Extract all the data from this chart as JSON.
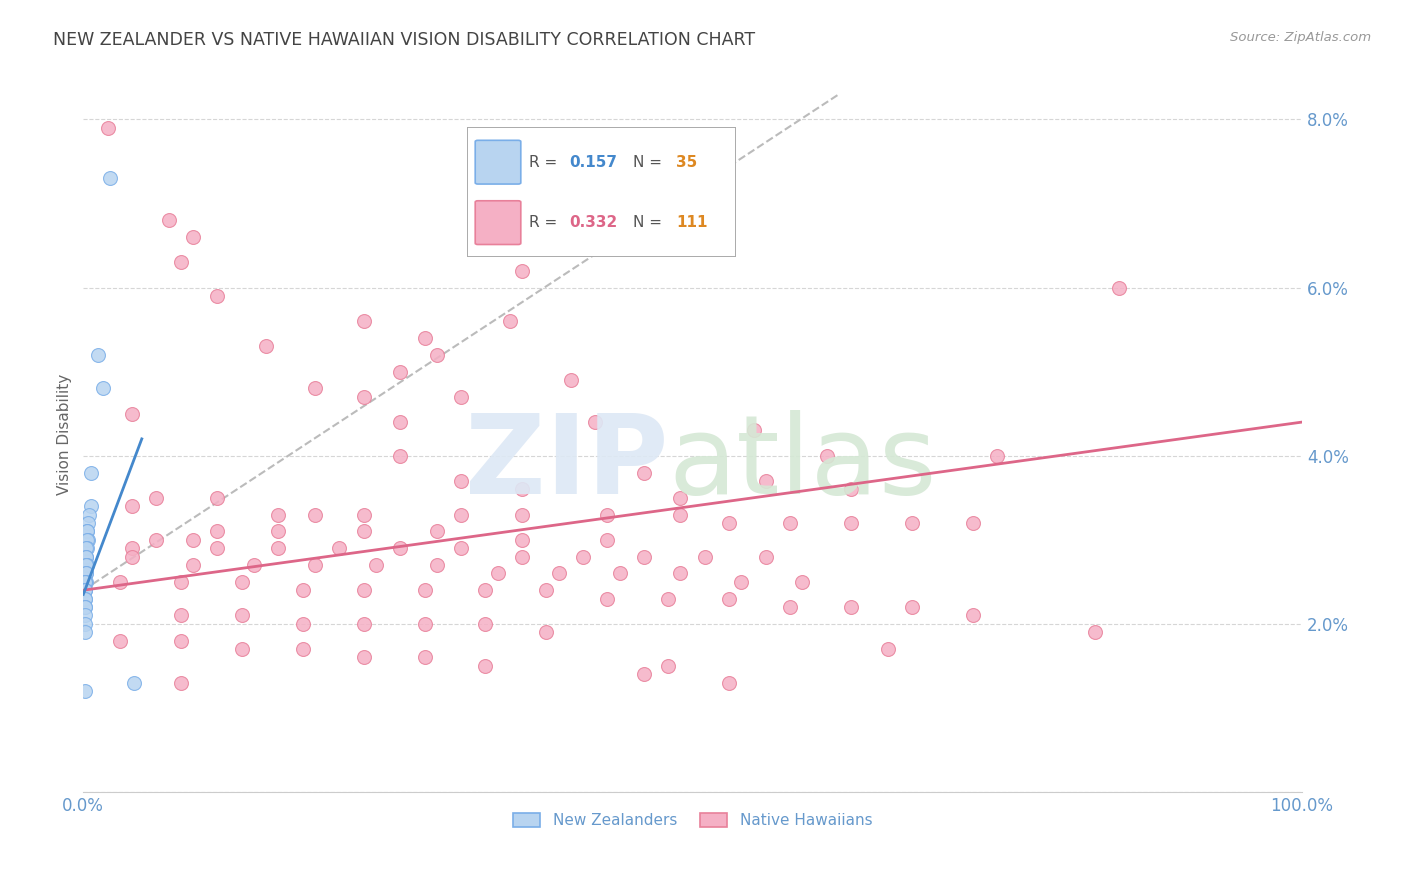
{
  "title": "NEW ZEALANDER VS NATIVE HAWAIIAN VISION DISABILITY CORRELATION CHART",
  "source": "Source: ZipAtlas.com",
  "ylabel": "Vision Disability",
  "xlim": [
    0,
    1.0
  ],
  "ylim": [
    0,
    0.085
  ],
  "yticks": [
    0.0,
    0.02,
    0.04,
    0.06,
    0.08
  ],
  "ytick_labels": [
    "",
    "2.0%",
    "4.0%",
    "6.0%",
    "8.0%"
  ],
  "xticks": [
    0.0,
    0.2,
    0.4,
    0.6,
    0.8,
    1.0
  ],
  "xtick_labels": [
    "0.0%",
    "",
    "",
    "",
    "",
    "100.0%"
  ],
  "nz_color_fill": "#b8d4f0",
  "nz_color_edge": "#7aaee8",
  "nh_color_fill": "#f5b0c5",
  "nh_color_edge": "#e8809a",
  "nz_line_color": "#4488cc",
  "nh_line_color": "#dd6688",
  "dashed_color": "#bbbbbb",
  "background_color": "#ffffff",
  "grid_color": "#cccccc",
  "tick_label_color": "#6699cc",
  "title_color": "#444444",
  "nz_R": "0.157",
  "nz_N": "35",
  "nh_R": "0.332",
  "nh_N": "111",
  "nz_scatter": [
    [
      0.022,
      0.073
    ],
    [
      0.012,
      0.052
    ],
    [
      0.016,
      0.048
    ],
    [
      0.006,
      0.038
    ],
    [
      0.006,
      0.034
    ],
    [
      0.005,
      0.033
    ],
    [
      0.004,
      0.032
    ],
    [
      0.003,
      0.031
    ],
    [
      0.003,
      0.031
    ],
    [
      0.004,
      0.03
    ],
    [
      0.003,
      0.03
    ],
    [
      0.003,
      0.029
    ],
    [
      0.002,
      0.029
    ],
    [
      0.002,
      0.028
    ],
    [
      0.002,
      0.028
    ],
    [
      0.002,
      0.027
    ],
    [
      0.003,
      0.027
    ],
    [
      0.002,
      0.027
    ],
    [
      0.002,
      0.026
    ],
    [
      0.002,
      0.026
    ],
    [
      0.002,
      0.025
    ],
    [
      0.001,
      0.025
    ],
    [
      0.001,
      0.025
    ],
    [
      0.001,
      0.024
    ],
    [
      0.001,
      0.024
    ],
    [
      0.001,
      0.024
    ],
    [
      0.001,
      0.023
    ],
    [
      0.001,
      0.023
    ],
    [
      0.001,
      0.022
    ],
    [
      0.001,
      0.022
    ],
    [
      0.001,
      0.021
    ],
    [
      0.001,
      0.02
    ],
    [
      0.001,
      0.019
    ],
    [
      0.001,
      0.012
    ],
    [
      0.042,
      0.013
    ]
  ],
  "nh_scatter": [
    [
      0.02,
      0.079
    ],
    [
      0.07,
      0.068
    ],
    [
      0.09,
      0.066
    ],
    [
      0.08,
      0.063
    ],
    [
      0.36,
      0.062
    ],
    [
      0.85,
      0.06
    ],
    [
      0.11,
      0.059
    ],
    [
      0.35,
      0.056
    ],
    [
      0.23,
      0.056
    ],
    [
      0.28,
      0.054
    ],
    [
      0.15,
      0.053
    ],
    [
      0.29,
      0.052
    ],
    [
      0.26,
      0.05
    ],
    [
      0.4,
      0.049
    ],
    [
      0.19,
      0.048
    ],
    [
      0.23,
      0.047
    ],
    [
      0.31,
      0.047
    ],
    [
      0.04,
      0.045
    ],
    [
      0.26,
      0.044
    ],
    [
      0.42,
      0.044
    ],
    [
      0.55,
      0.043
    ],
    [
      0.61,
      0.04
    ],
    [
      0.26,
      0.04
    ],
    [
      0.75,
      0.04
    ],
    [
      0.46,
      0.038
    ],
    [
      0.31,
      0.037
    ],
    [
      0.56,
      0.037
    ],
    [
      0.63,
      0.036
    ],
    [
      0.36,
      0.036
    ],
    [
      0.49,
      0.035
    ],
    [
      0.11,
      0.035
    ],
    [
      0.06,
      0.035
    ],
    [
      0.04,
      0.034
    ],
    [
      0.16,
      0.033
    ],
    [
      0.19,
      0.033
    ],
    [
      0.23,
      0.033
    ],
    [
      0.31,
      0.033
    ],
    [
      0.36,
      0.033
    ],
    [
      0.43,
      0.033
    ],
    [
      0.49,
      0.033
    ],
    [
      0.53,
      0.032
    ],
    [
      0.58,
      0.032
    ],
    [
      0.63,
      0.032
    ],
    [
      0.68,
      0.032
    ],
    [
      0.73,
      0.032
    ],
    [
      0.11,
      0.031
    ],
    [
      0.16,
      0.031
    ],
    [
      0.23,
      0.031
    ],
    [
      0.29,
      0.031
    ],
    [
      0.36,
      0.03
    ],
    [
      0.43,
      0.03
    ],
    [
      0.09,
      0.03
    ],
    [
      0.06,
      0.03
    ],
    [
      0.04,
      0.029
    ],
    [
      0.11,
      0.029
    ],
    [
      0.16,
      0.029
    ],
    [
      0.21,
      0.029
    ],
    [
      0.26,
      0.029
    ],
    [
      0.31,
      0.029
    ],
    [
      0.36,
      0.028
    ],
    [
      0.41,
      0.028
    ],
    [
      0.46,
      0.028
    ],
    [
      0.51,
      0.028
    ],
    [
      0.56,
      0.028
    ],
    [
      0.04,
      0.028
    ],
    [
      0.09,
      0.027
    ],
    [
      0.14,
      0.027
    ],
    [
      0.19,
      0.027
    ],
    [
      0.24,
      0.027
    ],
    [
      0.29,
      0.027
    ],
    [
      0.34,
      0.026
    ],
    [
      0.39,
      0.026
    ],
    [
      0.44,
      0.026
    ],
    [
      0.49,
      0.026
    ],
    [
      0.54,
      0.025
    ],
    [
      0.59,
      0.025
    ],
    [
      0.03,
      0.025
    ],
    [
      0.08,
      0.025
    ],
    [
      0.13,
      0.025
    ],
    [
      0.18,
      0.024
    ],
    [
      0.23,
      0.024
    ],
    [
      0.28,
      0.024
    ],
    [
      0.33,
      0.024
    ],
    [
      0.38,
      0.024
    ],
    [
      0.43,
      0.023
    ],
    [
      0.48,
      0.023
    ],
    [
      0.53,
      0.023
    ],
    [
      0.58,
      0.022
    ],
    [
      0.63,
      0.022
    ],
    [
      0.68,
      0.022
    ],
    [
      0.73,
      0.021
    ],
    [
      0.08,
      0.021
    ],
    [
      0.13,
      0.021
    ],
    [
      0.18,
      0.02
    ],
    [
      0.23,
      0.02
    ],
    [
      0.28,
      0.02
    ],
    [
      0.33,
      0.02
    ],
    [
      0.38,
      0.019
    ],
    [
      0.83,
      0.019
    ],
    [
      0.03,
      0.018
    ],
    [
      0.08,
      0.018
    ],
    [
      0.13,
      0.017
    ],
    [
      0.18,
      0.017
    ],
    [
      0.23,
      0.016
    ],
    [
      0.28,
      0.016
    ],
    [
      0.33,
      0.015
    ],
    [
      0.48,
      0.015
    ],
    [
      0.53,
      0.013
    ],
    [
      0.08,
      0.013
    ],
    [
      0.66,
      0.017
    ],
    [
      0.46,
      0.014
    ]
  ],
  "nz_line": [
    [
      0.0,
      0.0235
    ],
    [
      0.048,
      0.042
    ]
  ],
  "nh_line": [
    [
      0.0,
      0.024
    ],
    [
      1.0,
      0.044
    ]
  ],
  "dash_line": [
    [
      0.0,
      0.024
    ],
    [
      0.62,
      0.083
    ]
  ]
}
